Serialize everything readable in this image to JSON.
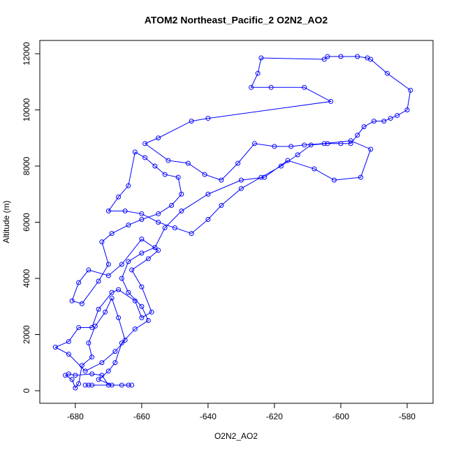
{
  "chart_data": {
    "type": "line",
    "title": "ATOM2 Northeast_Pacific_2 O2N2_AO2",
    "x_label": "O2N2_AO2",
    "y_label": "Altitude (m)",
    "color": "#0000ff",
    "marker": "open-circle",
    "grid": false,
    "xlim": [
      -690.7,
      -572.2
    ],
    "ylim": [
      -447,
      12472
    ],
    "xticks": [
      -680,
      -660,
      -640,
      -620,
      -600,
      -580
    ],
    "yticks": [
      0,
      2000,
      4000,
      6000,
      8000,
      10000,
      12000
    ],
    "x": [
      -676,
      -677,
      -675,
      -664,
      -666,
      -670,
      -672,
      -675,
      -680,
      -682,
      -683,
      -681,
      -680,
      -679,
      -678,
      -675,
      -676,
      -674,
      -671,
      -669,
      -667,
      -665,
      -668,
      -672,
      -677,
      -682,
      -686,
      -682,
      -679,
      -675,
      -673,
      -669,
      -667,
      -662,
      -660,
      -657,
      -660,
      -663,
      -658,
      -655,
      -660,
      -666,
      -670,
      -676,
      -679,
      -681,
      -678,
      -673,
      -670,
      -672,
      -669,
      -664,
      -660,
      -655,
      -651,
      -648,
      -649,
      -653,
      -656,
      -659,
      -662,
      -664,
      -667,
      -670,
      -665,
      -660,
      -655,
      -650,
      -645,
      -640,
      -636,
      -630,
      -624,
      -618,
      -613,
      -609,
      -604,
      -600,
      -597,
      -595,
      -593,
      -590,
      -587,
      -585,
      -583,
      -580,
      -579,
      -586,
      -591,
      -592,
      -595,
      -600,
      -604,
      -605,
      -624,
      -625,
      -627,
      -621,
      -611,
      -603,
      -640,
      -645,
      -655,
      -659,
      -652,
      -646,
      -641,
      -636,
      -631,
      -626,
      -620,
      -615,
      -611,
      -605,
      -597,
      -591,
      -594,
      -602,
      -608,
      -616,
      -623,
      -630,
      -640,
      -648,
      -653,
      -656,
      -660,
      -664,
      -666,
      -664,
      -660,
      -658,
      -662,
      -666,
      -668,
      -670,
      -673,
      -669,
      -663
    ],
    "values": [
      200,
      200,
      200,
      200,
      200,
      200,
      550,
      600,
      550,
      600,
      550,
      400,
      100,
      250,
      900,
      1200,
      1700,
      2300,
      2800,
      3300,
      2600,
      1800,
      1400,
      1000,
      700,
      1300,
      1550,
      1750,
      2250,
      2250,
      2900,
      3500,
      3600,
      3200,
      2600,
      2800,
      3700,
      4300,
      4700,
      5000,
      5400,
      4500,
      4100,
      4300,
      3850,
      3200,
      3100,
      3900,
      4500,
      5300,
      5600,
      5900,
      6100,
      6300,
      6600,
      7000,
      7600,
      7700,
      8000,
      8300,
      8500,
      7300,
      6900,
      6400,
      6400,
      6300,
      6000,
      5800,
      5600,
      6100,
      6600,
      7200,
      7600,
      8000,
      8400,
      8750,
      8800,
      8800,
      8800,
      9100,
      9400,
      9600,
      9600,
      9700,
      9800,
      10000,
      10700,
      11300,
      11800,
      11850,
      11900,
      11900,
      11900,
      11800,
      11850,
      11300,
      10800,
      10800,
      10800,
      10300,
      9700,
      9600,
      9000,
      8800,
      8200,
      8100,
      7700,
      7500,
      8100,
      8800,
      8700,
      8700,
      8750,
      8800,
      8900,
      8600,
      7600,
      7500,
      7900,
      8200,
      7600,
      7500,
      7000,
      6400,
      5800,
      5100,
      4900,
      4600,
      4000,
      3500,
      3000,
      2500,
      2200,
      1700,
      1000,
      700,
      400,
      200,
      200
    ]
  }
}
